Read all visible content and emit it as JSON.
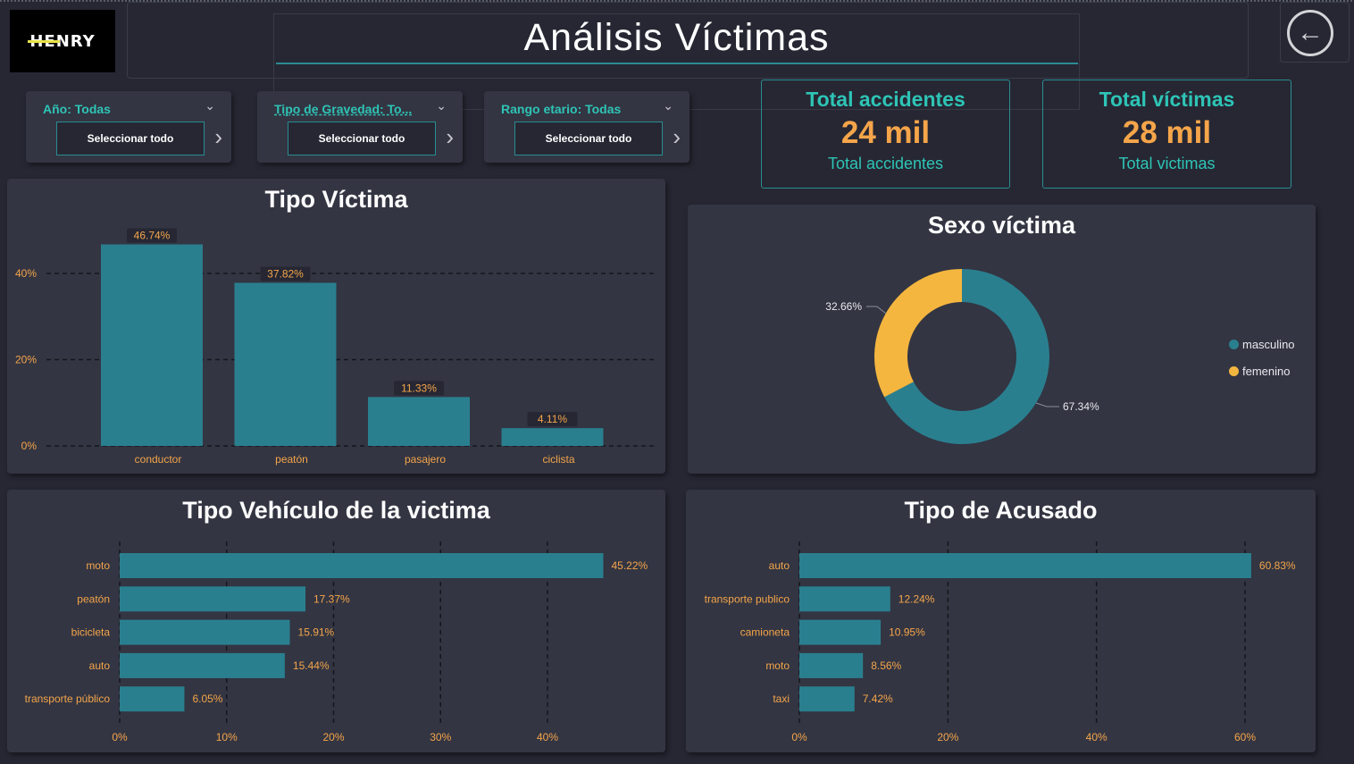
{
  "header": {
    "title": "Análisis Víctimas",
    "logo_text": "HENRY",
    "back_icon": "back-arrow-icon"
  },
  "filters": [
    {
      "label": "Año: Todas",
      "button": "Seleccionar todo"
    },
    {
      "label": "Tipo de Gravedad: To...",
      "button": "Seleccionar todo"
    },
    {
      "label": "Rango etario: Todas",
      "button": "Seleccionar todo"
    }
  ],
  "kpis": [
    {
      "title": "Total accidentes",
      "value": "24 mil",
      "label": "Total accidentes"
    },
    {
      "title": "Total víctimas",
      "value": "28 mil",
      "label": "Total victimas"
    }
  ],
  "colors": {
    "teal": "#2a7f8f",
    "orange": "#f5a54a",
    "yellow": "#f4b63f",
    "accent": "#2ec4b6"
  },
  "chart_data": [
    {
      "id": "tipo_victima",
      "type": "bar",
      "title": "Tipo Víctima",
      "categories": [
        "conductor",
        "peatón",
        "pasajero",
        "ciclista"
      ],
      "values": [
        46.74,
        37.82,
        11.33,
        4.11
      ],
      "labels": [
        "46.74%",
        "37.82%",
        "11.33%",
        "4.11%"
      ],
      "yticks": [
        "0%",
        "20%",
        "40%"
      ],
      "ylim": [
        0,
        50
      ],
      "grid": true
    },
    {
      "id": "sexo_victima",
      "type": "pie",
      "title": "Sexo víctima",
      "categories": [
        "masculino",
        "femenino"
      ],
      "values": [
        67.34,
        32.66
      ],
      "labels": [
        "67.34%",
        "32.66%"
      ],
      "colors": [
        "#2a7f8f",
        "#f4b63f"
      ],
      "legend": "right"
    },
    {
      "id": "tipo_vehiculo",
      "type": "bar",
      "orientation": "horizontal",
      "title": "Tipo Vehículo de la victima",
      "categories": [
        "moto",
        "peatón",
        "bicicleta",
        "auto",
        "transporte público"
      ],
      "values": [
        45.22,
        17.37,
        15.91,
        15.44,
        6.05
      ],
      "labels": [
        "45.22%",
        "17.37%",
        "15.91%",
        "15.44%",
        "6.05%"
      ],
      "xticks": [
        "0%",
        "10%",
        "20%",
        "30%",
        "40%"
      ],
      "xlim": [
        0,
        50
      ],
      "grid": true
    },
    {
      "id": "tipo_acusado",
      "type": "bar",
      "orientation": "horizontal",
      "title": "Tipo de Acusado",
      "categories": [
        "auto",
        "transporte publico",
        "camioneta",
        "moto",
        "taxi"
      ],
      "values": [
        60.83,
        12.24,
        10.95,
        8.56,
        7.42
      ],
      "labels": [
        "60.83%",
        "12.24%",
        "10.95%",
        "8.56%",
        "7.42%"
      ],
      "xticks": [
        "0%",
        "20%",
        "40%",
        "60%"
      ],
      "xlim": [
        0,
        66
      ],
      "grid": true
    }
  ]
}
